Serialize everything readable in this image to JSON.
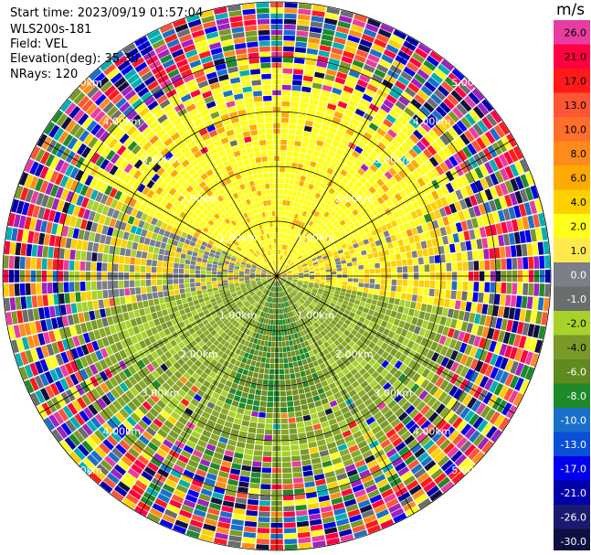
{
  "header": {
    "start_time": "Start time: 2023/09/19 01:57:04",
    "instrument": "WLS200s-181",
    "field": "Field: VEL",
    "elevation": "Elevation(deg): 35.30",
    "nrays": "NRays: 120"
  },
  "colorbar": {
    "unit": "m/s",
    "ticks": [
      "26.0",
      "21.0",
      "17.0",
      "13.0",
      "10.0",
      "8.0",
      "6.0",
      "4.0",
      "2.0",
      "1.0",
      "0.0",
      "-1.0",
      "-2.0",
      "-4.0",
      "-6.0",
      "-8.0",
      "-10.0",
      "-13.0",
      "-17.0",
      "-21.0",
      "-26.0",
      "-30.0"
    ],
    "colors": [
      "#e83da0",
      "#ff0040",
      "#ff1a1a",
      "#ff5533",
      "#ff6e2a",
      "#ff8c1a",
      "#ffaa00",
      "#ffd000",
      "#ffff1a",
      "#ffe94d",
      "#7a7f88",
      "#6b6e6e",
      "#a7d22c",
      "#7a9a28",
      "#5e8a1e",
      "#1e8a2a",
      "#1a70c8",
      "#0a4fd8",
      "#0000ee",
      "#0000aa",
      "#1a1a70",
      "#101040"
    ]
  },
  "rings": {
    "labels": [
      "1.00km",
      "2.00km",
      "3.00km",
      "4.00km",
      "5.00km"
    ]
  }
}
